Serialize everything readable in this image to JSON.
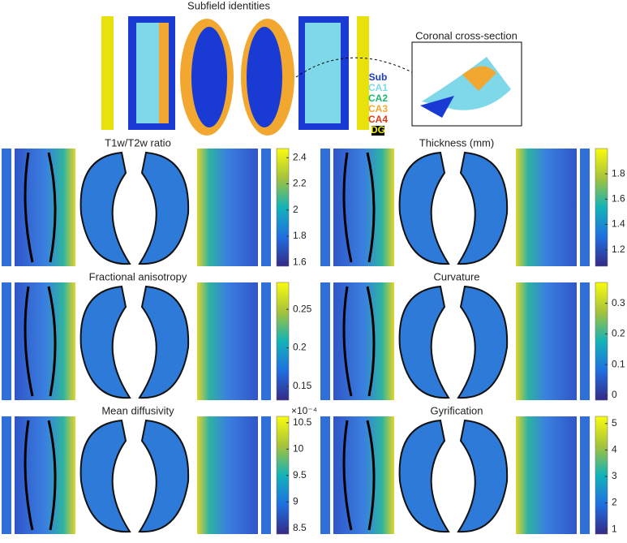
{
  "top": {
    "title": "Subfield identities",
    "inset_title": "Coronal cross-section",
    "legend": [
      {
        "label": "Sub",
        "color": "#1a3ad4"
      },
      {
        "label": "CA1",
        "color": "#7fd8ea"
      },
      {
        "label": "CA2",
        "color": "#19b86e"
      },
      {
        "label": "CA3",
        "color": "#f2a830"
      },
      {
        "label": "CA4",
        "color": "#e03a1a"
      },
      {
        "label": "DG",
        "color": "#f5f00a"
      }
    ]
  },
  "panels": [
    {
      "title": "T1w/T2w ratio",
      "clim": [
        1.57,
        2.47
      ],
      "ticks": [
        1.6,
        1.8,
        2,
        2.2,
        2.4
      ]
    },
    {
      "title": "Thickness (mm)",
      "clim": [
        1.07,
        2.0
      ],
      "ticks": [
        1.2,
        1.4,
        1.6,
        1.8
      ]
    },
    {
      "title": "Fractional anisotropy",
      "clim": [
        0.132,
        0.285
      ],
      "ticks": [
        0.15,
        0.2,
        0.25
      ]
    },
    {
      "title": "Curvature",
      "clim": [
        -0.016,
        0.368
      ],
      "ticks": [
        0,
        0.1,
        0.2,
        0.3
      ]
    },
    {
      "title": "Mean diffusivity",
      "clim": [
        8.39,
        10.62
      ],
      "ticks": [
        8.5,
        9,
        9.5,
        10,
        10.5
      ],
      "multiplier": "×10⁻⁴"
    },
    {
      "title": "Gyrification",
      "clim": [
        0.82,
        5.27
      ],
      "ticks": [
        1,
        2,
        3,
        4,
        5
      ]
    }
  ]
}
